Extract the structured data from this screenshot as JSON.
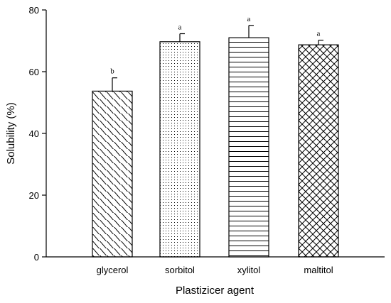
{
  "chart_data": {
    "type": "bar",
    "title": "",
    "xlabel": "Plastizicer agent",
    "ylabel": "Solubility (%)",
    "ylim": [
      0,
      80
    ],
    "yticks": [
      0,
      20,
      40,
      60,
      80
    ],
    "grid": false,
    "categories": [
      "glycerol",
      "sorbitol",
      "xylitol",
      "maltitol"
    ],
    "values": [
      53.7,
      69.7,
      71.0,
      68.7
    ],
    "errors": [
      4.3,
      2.6,
      4.0,
      1.5
    ],
    "annotations": [
      "b",
      "a",
      "a",
      "a"
    ],
    "patterns": [
      "diagonal-hatch",
      "dots",
      "horizontal-lines",
      "crosshatch"
    ]
  }
}
